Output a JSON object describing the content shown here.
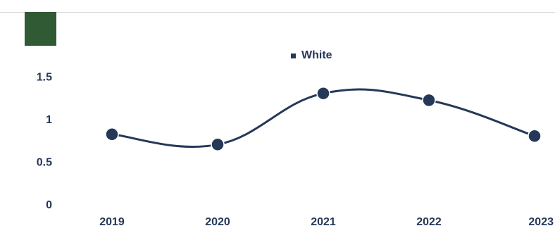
{
  "colors": {
    "series": "#253858",
    "brand": "#2f5a34",
    "rule": "#d9d9d9"
  },
  "chart_data": {
    "type": "line",
    "x": [
      "2019",
      "2020",
      "2021",
      "2022",
      "2023"
    ],
    "series": [
      {
        "name": "White",
        "values": [
          0.82,
          0.7,
          1.3,
          1.22,
          0.8
        ]
      }
    ],
    "yticks": [
      "0",
      "0.5",
      "1",
      "1.5"
    ],
    "ylim": [
      0,
      1.6
    ],
    "legend": "top-center",
    "grid": false,
    "title": "",
    "xlabel": "",
    "ylabel": ""
  }
}
